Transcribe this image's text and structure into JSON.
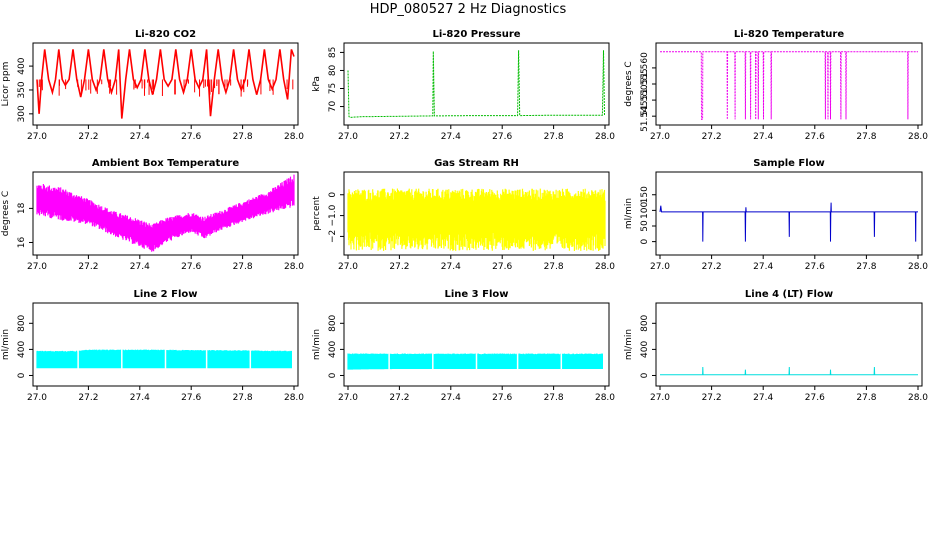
{
  "page": {
    "title": "HDP_080527  2 Hz Diagnostics"
  },
  "chart_data": [
    {
      "type": "line",
      "title": "Li-820 CO2",
      "ylabel": "Licor ppm",
      "xlim": [
        27.0,
        28.0
      ],
      "ylim": [
        285,
        440
      ],
      "yticks": [
        300,
        350,
        400
      ],
      "xticks": [
        27.0,
        27.2,
        27.4,
        27.6,
        27.8,
        28.0
      ],
      "xtick_labels": [
        "27.0",
        "27.2",
        "27.4",
        "27.6",
        "27.8",
        "28.0"
      ],
      "ytick_labels": [
        "300",
        "350",
        "400"
      ],
      "color": "#ff0000",
      "series": [
        {
          "x": [
            27.0,
            27.008,
            27.018,
            27.03,
            27.045,
            27.06,
            27.072,
            27.085,
            27.098,
            27.11,
            27.125,
            27.14,
            27.155,
            27.17,
            27.185,
            27.2,
            27.215,
            27.23,
            27.245,
            27.26,
            27.275,
            27.29,
            27.305,
            27.318,
            27.33,
            27.345,
            27.36,
            27.375,
            27.39,
            27.405,
            27.42,
            27.435,
            27.45,
            27.465,
            27.48,
            27.495,
            27.51,
            27.525,
            27.54,
            27.555,
            27.57,
            27.585,
            27.6,
            27.615,
            27.63,
            27.645,
            27.66,
            27.675,
            27.69,
            27.705,
            27.72,
            27.735,
            27.75,
            27.765,
            27.78,
            27.795,
            27.81,
            27.825,
            27.84,
            27.855,
            27.87,
            27.885,
            27.9,
            27.915,
            27.93,
            27.945,
            27.96,
            27.975,
            27.99,
            28.0
          ],
          "y": [
            372,
            300,
            372,
            435,
            372,
            345,
            372,
            435,
            372,
            360,
            372,
            435,
            372,
            335,
            372,
            435,
            372,
            350,
            372,
            435,
            372,
            345,
            372,
            435,
            290,
            372,
            435,
            372,
            355,
            372,
            435,
            372,
            340,
            372,
            435,
            372,
            358,
            372,
            435,
            372,
            345,
            372,
            435,
            372,
            355,
            372,
            435,
            295,
            372,
            435,
            372,
            345,
            372,
            435,
            372,
            350,
            372,
            435,
            372,
            340,
            372,
            435,
            372,
            352,
            372,
            435,
            372,
            330,
            435,
            420
          ]
        }
      ]
    },
    {
      "type": "line",
      "title": "Li-820 Pressure",
      "ylabel": "kPa",
      "xlim": [
        27.0,
        28.0
      ],
      "ylim": [
        66,
        86.5
      ],
      "yticks": [
        70,
        75,
        80,
        85
      ],
      "xticks": [
        27.0,
        27.2,
        27.4,
        27.6,
        27.8,
        28.0
      ],
      "xtick_labels": [
        "27.0",
        "27.2",
        "27.4",
        "27.6",
        "27.8",
        "28.0"
      ],
      "ytick_labels": [
        "70",
        "75",
        "80",
        "85"
      ],
      "color": "#00bb00",
      "series": [
        {
          "x": [
            27.0,
            27.004,
            27.008,
            27.05,
            27.2,
            27.33,
            27.332,
            27.336,
            27.5,
            27.66,
            27.664,
            27.668,
            27.8,
            27.99,
            27.994,
            27.998,
            28.0
          ],
          "y": [
            80,
            67.2,
            67.0,
            67.2,
            67.3,
            67.4,
            85.3,
            67.4,
            67.5,
            67.5,
            85.6,
            67.5,
            67.6,
            67.6,
            85.6,
            67.6,
            67.6
          ]
        }
      ]
    },
    {
      "type": "line",
      "title": "Li-820 Temperature",
      "ylabel": "degrees C",
      "xlim": [
        27.0,
        28.0
      ],
      "ylim": [
        51.5435,
        51.5665
      ],
      "yticks": [
        51.545,
        51.55,
        51.555,
        51.56
      ],
      "xticks": [
        27.0,
        27.2,
        27.4,
        27.6,
        27.8,
        28.0
      ],
      "xtick_labels": [
        "27.0",
        "27.2",
        "27.4",
        "27.6",
        "27.8",
        "28.0"
      ],
      "ytick_labels": [
        "51.545",
        "51.550",
        "51.555",
        "51.560"
      ],
      "color": "#ee00ee",
      "series": [
        {
          "x": [
            27.0,
            27.16,
            27.161,
            27.165,
            27.166,
            27.26,
            27.261,
            27.262,
            27.29,
            27.291,
            27.292,
            27.33,
            27.331,
            27.332,
            27.35,
            27.351,
            27.352,
            27.37,
            27.371,
            27.372,
            27.38,
            27.381,
            27.382,
            27.4,
            27.401,
            27.402,
            27.43,
            27.431,
            27.432,
            27.64,
            27.641,
            27.642,
            27.65,
            27.651,
            27.652,
            27.66,
            27.661,
            27.662,
            27.7,
            27.701,
            27.702,
            27.72,
            27.721,
            27.722,
            27.96,
            27.961,
            27.962,
            28.0
          ],
          "y": [
            51.565,
            51.565,
            51.544,
            51.544,
            51.565,
            51.565,
            51.544,
            51.565,
            51.565,
            51.544,
            51.565,
            51.565,
            51.544,
            51.565,
            51.565,
            51.544,
            51.565,
            51.565,
            51.544,
            51.565,
            51.565,
            51.544,
            51.565,
            51.565,
            51.544,
            51.565,
            51.565,
            51.544,
            51.565,
            51.565,
            51.544,
            51.565,
            51.565,
            51.544,
            51.565,
            51.565,
            51.544,
            51.565,
            51.565,
            51.544,
            51.565,
            51.565,
            51.544,
            51.565,
            51.565,
            51.544,
            51.565,
            51.565
          ]
        }
      ]
    },
    {
      "type": "area",
      "title": "Ambient Box Temperature",
      "ylabel": "degrees C",
      "xlim": [
        27.0,
        28.0
      ],
      "ylim": [
        15.5,
        19.9
      ],
      "yticks": [
        16,
        18
      ],
      "xticks": [
        27.0,
        27.2,
        27.4,
        27.6,
        27.8,
        28.0
      ],
      "xtick_labels": [
        "27.0",
        "27.2",
        "27.4",
        "27.6",
        "27.8",
        "28.0"
      ],
      "ytick_labels": [
        "16",
        "18"
      ],
      "color": "#ff00ff",
      "band": {
        "x": [
          27.0,
          27.1,
          27.2,
          27.3,
          27.4,
          27.45,
          27.5,
          27.6,
          27.65,
          27.7,
          27.8,
          27.9,
          28.0
        ],
        "upper": [
          19.2,
          18.9,
          18.3,
          17.6,
          17.1,
          16.8,
          17.2,
          17.6,
          17.3,
          17.6,
          18.2,
          18.8,
          19.7
        ],
        "lower": [
          17.9,
          17.6,
          17.3,
          16.6,
          16.0,
          15.7,
          16.2,
          16.8,
          16.4,
          16.8,
          17.4,
          17.9,
          18.4
        ]
      }
    },
    {
      "type": "area",
      "title": "Gas Stream RH",
      "ylabel": "percent",
      "xlim": [
        27.0,
        28.0
      ],
      "ylim": [
        -2.7,
        0.9
      ],
      "yticks": [
        -2,
        -1,
        0
      ],
      "xticks": [
        27.0,
        27.2,
        27.4,
        27.6,
        27.8,
        28.0
      ],
      "xtick_labels": [
        "27.0",
        "27.2",
        "27.4",
        "27.6",
        "27.8",
        "28.0"
      ],
      "ytick_labels": [
        "−2",
        "−1.0",
        "0"
      ],
      "color": "#ffff00",
      "band": {
        "x": [
          27.0,
          27.2,
          27.4,
          27.6,
          27.8,
          28.0
        ],
        "upper": [
          0.0,
          0.0,
          0.0,
          0.0,
          0.0,
          0.0
        ],
        "lower": [
          -1.8,
          -1.8,
          -1.8,
          -1.8,
          -1.8,
          -1.8
        ]
      }
    },
    {
      "type": "line",
      "title": "Sample Flow",
      "ylabel": "ml/min",
      "xlim": [
        27.0,
        28.0
      ],
      "ylim": [
        -30,
        210
      ],
      "yticks": [
        0,
        50,
        100,
        150
      ],
      "xticks": [
        27.0,
        27.2,
        27.4,
        27.6,
        27.8,
        28.0
      ],
      "xtick_labels": [
        "27.0",
        "27.2",
        "27.4",
        "27.6",
        "27.8",
        "28.0"
      ],
      "ytick_labels": [
        "0",
        "50",
        "100",
        "150"
      ],
      "color": "#0000cc",
      "series": [
        {
          "x": [
            27.0,
            27.003,
            27.006,
            27.165,
            27.166,
            27.167,
            27.2,
            27.33,
            27.331,
            27.332,
            27.333,
            27.334,
            27.5,
            27.501,
            27.502,
            27.66,
            27.661,
            27.662,
            27.663,
            27.664,
            27.665,
            27.83,
            27.831,
            27.832,
            27.99,
            27.991,
            27.992,
            28.0
          ],
          "y": [
            95,
            115,
            95,
            95,
            0,
            95,
            95,
            95,
            0,
            95,
            110,
            95,
            95,
            15,
            95,
            95,
            0,
            95,
            125,
            95,
            95,
            95,
            15,
            95,
            95,
            0,
            95,
            95
          ]
        }
      ]
    },
    {
      "type": "area",
      "title": "Line 2 Flow",
      "ylabel": "ml/min",
      "xlim": [
        27.0,
        28.0
      ],
      "ylim": [
        -100,
        1050
      ],
      "yticks": [
        0,
        400,
        800
      ],
      "xticks": [
        27.0,
        27.2,
        27.4,
        27.6,
        27.8,
        28.0
      ],
      "xtick_labels": [
        "27.0",
        "27.2",
        "27.4",
        "27.6",
        "27.8",
        "28.0"
      ],
      "ytick_labels": [
        "0",
        "400",
        "800"
      ],
      "color": "#00ffff",
      "band": {
        "x": [
          27.0,
          27.15,
          27.2,
          27.4,
          27.6,
          27.8,
          27.99
        ],
        "upper": [
          370,
          370,
          390,
          390,
          385,
          380,
          370
        ],
        "lower": [
          110,
          110,
          110,
          110,
          110,
          110,
          110
        ]
      },
      "gaps": [
        27.16,
        27.33,
        27.5,
        27.66,
        27.83
      ]
    },
    {
      "type": "area",
      "title": "Line 3 Flow",
      "ylabel": "ml/min",
      "xlim": [
        27.0,
        28.0
      ],
      "ylim": [
        -100,
        1050
      ],
      "yticks": [
        0,
        400,
        800
      ],
      "xticks": [
        27.0,
        27.2,
        27.4,
        27.6,
        27.8,
        28.0
      ],
      "xtick_labels": [
        "27.0",
        "27.2",
        "27.4",
        "27.6",
        "27.8",
        "28.0"
      ],
      "ytick_labels": [
        "0",
        "400",
        "800"
      ],
      "color": "#00ffff",
      "band": {
        "x": [
          27.0,
          27.2,
          27.4,
          27.6,
          27.8,
          27.99
        ],
        "upper": [
          330,
          330,
          330,
          330,
          330,
          330
        ],
        "lower": [
          90,
          100,
          100,
          100,
          100,
          100
        ]
      },
      "gaps": [
        27.16,
        27.33,
        27.5,
        27.66,
        27.83
      ]
    },
    {
      "type": "line",
      "title": "Line 4 (LT) Flow",
      "ylabel": "ml/min",
      "xlim": [
        27.0,
        28.0
      ],
      "ylim": [
        -100,
        1050
      ],
      "yticks": [
        0,
        400,
        800
      ],
      "xticks": [
        27.0,
        27.2,
        27.4,
        27.6,
        27.8,
        28.0
      ],
      "xtick_labels": [
        "27.0",
        "27.2",
        "27.4",
        "27.6",
        "27.8",
        "28.0"
      ],
      "ytick_labels": [
        "0",
        "400",
        "800"
      ],
      "color": "#00dddd",
      "series": [
        {
          "x": [
            27.0,
            27.165,
            27.166,
            27.167,
            27.33,
            27.331,
            27.332,
            27.5,
            27.501,
            27.502,
            27.66,
            27.661,
            27.662,
            27.83,
            27.831,
            27.832,
            28.0
          ],
          "y": [
            10,
            10,
            130,
            10,
            10,
            90,
            10,
            10,
            130,
            10,
            10,
            90,
            10,
            10,
            130,
            10,
            10
          ]
        }
      ]
    }
  ]
}
